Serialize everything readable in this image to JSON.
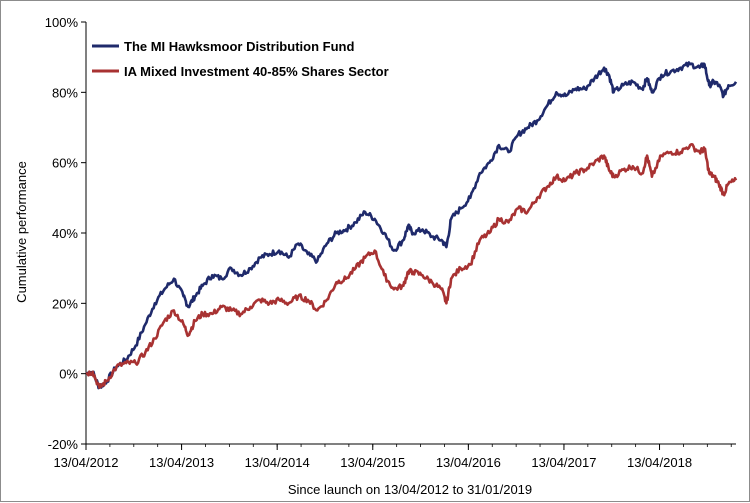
{
  "chart_data": {
    "type": "line",
    "xlabel": "Since launch on 13/04/2012 to 31/01/2019",
    "ylabel": "Cumulative performance",
    "ylim": [
      -20,
      100
    ],
    "xlim": [
      2012.28,
      2019.08
    ],
    "y_ticks": [
      -20,
      0,
      20,
      40,
      60,
      80,
      100
    ],
    "y_tick_labels": [
      "-20%",
      "0%",
      "20%",
      "40%",
      "60%",
      "80%",
      "100%"
    ],
    "x_ticks": [
      2012.28,
      2013.28,
      2014.28,
      2015.28,
      2016.28,
      2017.28,
      2018.28
    ],
    "x_tick_labels": [
      "13/04/2012",
      "13/04/2013",
      "13/04/2014",
      "13/04/2015",
      "13/04/2016",
      "13/04/2017",
      "13/04/2018"
    ],
    "grid": false,
    "legend_position": "top-left",
    "series": [
      {
        "name": "The MI Hawksmoor Distribution Fund",
        "color": "#1f2a6b",
        "x": [
          2012.28,
          2012.35,
          2012.42,
          2012.5,
          2012.6,
          2012.7,
          2012.8,
          2012.9,
          2013.0,
          2013.1,
          2013.2,
          2013.3,
          2013.35,
          2013.42,
          2013.5,
          2013.6,
          2013.7,
          2013.8,
          2013.9,
          2014.0,
          2014.1,
          2014.2,
          2014.3,
          2014.4,
          2014.5,
          2014.6,
          2014.7,
          2014.8,
          2014.9,
          2015.0,
          2015.1,
          2015.2,
          2015.3,
          2015.4,
          2015.5,
          2015.6,
          2015.65,
          2015.7,
          2015.8,
          2015.9,
          2016.0,
          2016.05,
          2016.1,
          2016.2,
          2016.3,
          2016.4,
          2016.5,
          2016.6,
          2016.7,
          2016.8,
          2016.9,
          2017.0,
          2017.1,
          2017.2,
          2017.3,
          2017.4,
          2017.5,
          2017.6,
          2017.7,
          2017.75,
          2017.8,
          2017.9,
          2018.0,
          2018.1,
          2018.15,
          2018.2,
          2018.3,
          2018.4,
          2018.5,
          2018.6,
          2018.7,
          2018.75,
          2018.8,
          2018.85,
          2018.9,
          2018.95,
          2019.0,
          2019.08
        ],
        "y": [
          0,
          0.5,
          -4,
          -2,
          2,
          4,
          8,
          14,
          20,
          24,
          27,
          22,
          19,
          22,
          25,
          28,
          27,
          30,
          28,
          30,
          33,
          34,
          35,
          33,
          37,
          34,
          32,
          37,
          40,
          41,
          43,
          46,
          44,
          40,
          35,
          38,
          42,
          40,
          41,
          39,
          38,
          36,
          44,
          47,
          50,
          57,
          60,
          65,
          63,
          68,
          70,
          72,
          76,
          80,
          79,
          81,
          81,
          84,
          87,
          85,
          80,
          82,
          83,
          81,
          84,
          80,
          85,
          86,
          87,
          88,
          87,
          88,
          82,
          83,
          82,
          79,
          82,
          83
        ]
      },
      {
        "name": "IA Mixed Investment 40-85% Shares Sector",
        "color": "#a83232",
        "x": [
          2012.28,
          2012.35,
          2012.42,
          2012.5,
          2012.6,
          2012.7,
          2012.8,
          2012.9,
          2013.0,
          2013.1,
          2013.2,
          2013.3,
          2013.35,
          2013.42,
          2013.5,
          2013.6,
          2013.7,
          2013.8,
          2013.9,
          2014.0,
          2014.1,
          2014.2,
          2014.3,
          2014.4,
          2014.5,
          2014.6,
          2014.7,
          2014.8,
          2014.9,
          2015.0,
          2015.1,
          2015.2,
          2015.3,
          2015.4,
          2015.5,
          2015.6,
          2015.65,
          2015.7,
          2015.8,
          2015.9,
          2016.0,
          2016.05,
          2016.1,
          2016.2,
          2016.3,
          2016.4,
          2016.5,
          2016.6,
          2016.7,
          2016.8,
          2016.9,
          2017.0,
          2017.1,
          2017.2,
          2017.3,
          2017.4,
          2017.5,
          2017.6,
          2017.7,
          2017.75,
          2017.8,
          2017.9,
          2018.0,
          2018.1,
          2018.15,
          2018.2,
          2018.3,
          2018.4,
          2018.5,
          2018.6,
          2018.7,
          2018.75,
          2018.8,
          2018.85,
          2018.9,
          2018.95,
          2019.0,
          2019.08
        ],
        "y": [
          0,
          0.5,
          -4,
          -2,
          2,
          3,
          3,
          6,
          10,
          15,
          18,
          14,
          11,
          15,
          17,
          17,
          19,
          18,
          17,
          19,
          21,
          20,
          21,
          20,
          22,
          21,
          18,
          21,
          26,
          27,
          30,
          33,
          35,
          28,
          24,
          25,
          29,
          29,
          28,
          26,
          24,
          20,
          27,
          30,
          31,
          38,
          40,
          44,
          43,
          47,
          46,
          50,
          53,
          56,
          55,
          57,
          58,
          60,
          62,
          58,
          56,
          58,
          59,
          57,
          62,
          56,
          62,
          63,
          63,
          65,
          63,
          64,
          57,
          56,
          54,
          51,
          54,
          55
        ]
      }
    ]
  }
}
